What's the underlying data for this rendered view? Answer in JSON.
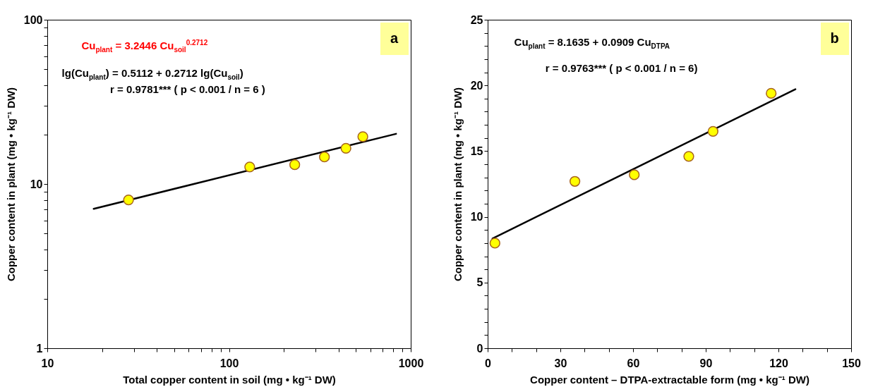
{
  "chart_data": [
    {
      "type": "scatter",
      "title": "a",
      "xlabel": "Total copper content in soil (mg • kg⁻¹ DW)",
      "ylabel": "Copper content in plant (mg • kg⁻¹ DW)",
      "log": "xy",
      "xlim": [
        10,
        1000
      ],
      "ylim": [
        1,
        100
      ],
      "xticks": [
        10,
        {
          "value": 20,
          "label": null
        },
        {
          "value": 30,
          "label": null
        },
        {
          "value": 40,
          "label": null
        },
        {
          "value": 50,
          "label": null
        },
        {
          "value": 60,
          "label": null
        },
        {
          "value": 70,
          "label": null
        },
        {
          "value": 80,
          "label": null
        },
        {
          "value": 90,
          "label": null
        },
        100,
        {
          "value": 200,
          "label": null
        },
        {
          "value": 300,
          "label": null
        },
        {
          "value": 400,
          "label": null
        },
        {
          "value": 500,
          "label": null
        },
        {
          "value": 600,
          "label": null
        },
        {
          "value": 700,
          "label": null
        },
        {
          "value": 800,
          "label": null
        },
        {
          "value": 900,
          "label": null
        },
        1000
      ],
      "yticks": [
        1,
        {
          "value": 2,
          "label": null
        },
        {
          "value": 3,
          "label": null
        },
        {
          "value": 4,
          "label": null
        },
        {
          "value": 5,
          "label": null
        },
        {
          "value": 6,
          "label": null
        },
        {
          "value": 7,
          "label": null
        },
        {
          "value": 8,
          "label": null
        },
        {
          "value": 9,
          "label": null
        },
        10,
        {
          "value": 20,
          "label": null
        },
        {
          "value": 30,
          "label": null
        },
        {
          "value": 40,
          "label": null
        },
        {
          "value": 50,
          "label": null
        },
        {
          "value": 60,
          "label": null
        },
        {
          "value": 70,
          "label": null
        },
        {
          "value": 80,
          "label": null
        },
        {
          "value": 90,
          "label": null
        },
        100
      ],
      "grid": false,
      "annotations": [
        "Cu$_{plant}$ = 3.2446 Cu$_{soil}$$^{0.2712}$",
        "lg(Cu$_{plant}$) = 0.5112 + 0.2712 lg(Cu$_{soil}$)",
        "r = 0.9781***  ( p < 0.001 / n = 6 )"
      ],
      "series": [
        {
          "type": "scatter",
          "marker": "circle",
          "color": "#ffff00",
          "x": [
            28,
            130,
            230,
            335,
            440,
            545
          ],
          "values": [
            8.0,
            12.7,
            13.1,
            14.6,
            16.5,
            19.4
          ]
        },
        {
          "type": "line",
          "marker": "none",
          "color": "#000000",
          "x": [
            18,
            830
          ],
          "values": [
            7.06,
            20.2
          ]
        }
      ]
    },
    {
      "type": "scatter",
      "title": "b",
      "xlabel": "Copper content – DTPA-extractable form (mg • kg⁻¹ DW)",
      "ylabel": "Copper content in plant (mg • kg⁻¹ DW)",
      "xlim": [
        0,
        150
      ],
      "ylim": [
        0,
        25
      ],
      "xticks": [
        0,
        {
          "value": 10,
          "label": null
        },
        {
          "value": 20,
          "label": null
        },
        30,
        {
          "value": 40,
          "label": null
        },
        {
          "value": 50,
          "label": null
        },
        60,
        {
          "value": 70,
          "label": null
        },
        {
          "value": 80,
          "label": null
        },
        90,
        {
          "value": 100,
          "label": null
        },
        {
          "value": 110,
          "label": null
        },
        120,
        {
          "value": 130,
          "label": null
        },
        {
          "value": 140,
          "label": null
        },
        150
      ],
      "yticks": [
        0,
        {
          "value": 1,
          "label": null
        },
        {
          "value": 2,
          "label": null
        },
        {
          "value": 3,
          "label": null
        },
        {
          "value": 4,
          "label": null
        },
        5,
        {
          "value": 6,
          "label": null
        },
        {
          "value": 7,
          "label": null
        },
        {
          "value": 8,
          "label": null
        },
        {
          "value": 9,
          "label": null
        },
        10,
        {
          "value": 11,
          "label": null
        },
        {
          "value": 12,
          "label": null
        },
        {
          "value": 13,
          "label": null
        },
        {
          "value": 14,
          "label": null
        },
        15,
        {
          "value": 16,
          "label": null
        },
        {
          "value": 17,
          "label": null
        },
        {
          "value": 18,
          "label": null
        },
        {
          "value": 19,
          "label": null
        },
        20,
        {
          "value": 21,
          "label": null
        },
        {
          "value": 22,
          "label": null
        },
        {
          "value": 23,
          "label": null
        },
        {
          "value": 24,
          "label": null
        },
        25
      ],
      "grid": false,
      "annotations": [
        "Cu$_{plant}$  = 8.1635 + 0.0909 Cu$_{DTPA}$",
        "r = 0.9763*** ( p < 0.001 / n = 6)"
      ],
      "series": [
        {
          "type": "scatter",
          "marker": "circle",
          "color": "#ffff00",
          "x": [
            3,
            36,
            60.5,
            83,
            93,
            117
          ],
          "values": [
            8.0,
            12.7,
            13.2,
            14.6,
            16.5,
            19.4
          ]
        },
        {
          "type": "line",
          "marker": "none",
          "color": "#000000",
          "x": [
            2,
            127
          ],
          "values": [
            8.35,
            19.71
          ]
        }
      ]
    }
  ]
}
